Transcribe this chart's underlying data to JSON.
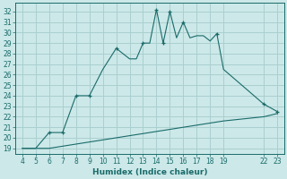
{
  "xlabel": "Humidex (Indice chaleur)",
  "bg_color": "#cce8e8",
  "grid_color": "#aacfcf",
  "line_color": "#1a6b6b",
  "line1_x": [
    4,
    5,
    6,
    6.5,
    7,
    7,
    8,
    9,
    10,
    11,
    12,
    12.5,
    13,
    13.5,
    14,
    14.5,
    15,
    15.5,
    16,
    16.5,
    17,
    17.5,
    18,
    18.5,
    19,
    22,
    23
  ],
  "line1_y": [
    19,
    19,
    20.5,
    20.5,
    20.5,
    20.5,
    24,
    24,
    26.5,
    28.5,
    27.5,
    27.5,
    29,
    29,
    32.2,
    29,
    32.0,
    29.5,
    31.0,
    29.5,
    29.7,
    29.7,
    29.2,
    29.9,
    26.5,
    23.2,
    22.5
  ],
  "line2_x": [
    4,
    5,
    6,
    7,
    8,
    9,
    10,
    11,
    12,
    13,
    14,
    15,
    16,
    17,
    18,
    19,
    22,
    23
  ],
  "line2_y": [
    19.0,
    19.0,
    19.0,
    19.2,
    19.4,
    19.6,
    19.8,
    20.0,
    20.2,
    20.4,
    20.6,
    20.8,
    21.0,
    21.2,
    21.4,
    21.6,
    22.0,
    22.3
  ],
  "marker1_x": [
    6,
    7,
    8,
    9,
    11,
    13,
    14,
    14.5,
    15,
    16,
    18.5,
    22,
    23
  ],
  "marker1_y": [
    20.5,
    20.5,
    24,
    24,
    28.5,
    29,
    32.2,
    29,
    32.0,
    31.0,
    29.9,
    23.2,
    22.5
  ],
  "xlim": [
    3.5,
    23.5
  ],
  "ylim": [
    18.5,
    32.8
  ],
  "xticks": [
    4,
    5,
    6,
    7,
    8,
    9,
    10,
    11,
    12,
    13,
    14,
    15,
    16,
    17,
    18,
    19,
    22,
    23
  ],
  "yticks": [
    19,
    20,
    21,
    22,
    23,
    24,
    25,
    26,
    27,
    28,
    29,
    30,
    31,
    32
  ],
  "tick_fontsize": 5.5,
  "xlabel_fontsize": 6.5
}
